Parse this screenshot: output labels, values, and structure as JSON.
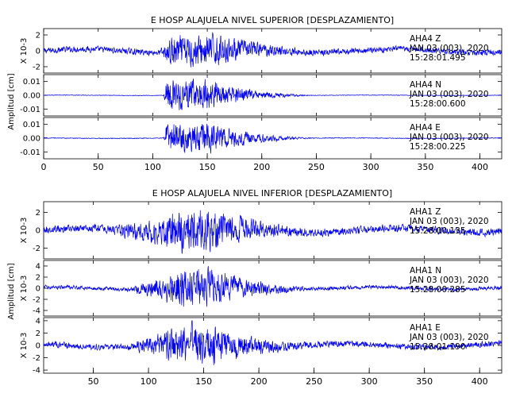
{
  "chart_data": [
    {
      "type": "line",
      "title": "E HOSP ALAJUELA NIVEL SUPERIOR [DESPLAZAMIENTO]",
      "ylabel": "Amplitud [cm]",
      "xlim": [
        0,
        420
      ],
      "x_ticks": [
        0,
        50,
        100,
        150,
        200,
        250,
        300,
        350,
        400
      ],
      "series_color": "#0000ee",
      "panels": [
        {
          "name": "AHA4 Z",
          "station": "AHA4",
          "component": "Z",
          "date": "JAN 03 (003), 2020",
          "time": "15:28:01.495",
          "scale_label": "X 10-3",
          "ylim": [
            -2.8,
            2.8
          ],
          "y_ticks": [
            -2,
            0,
            2
          ],
          "y_tick_labels": [
            "-2",
            "0",
            "2"
          ],
          "noise": 0.55,
          "peak": 2.6,
          "p_onset": 105,
          "s_peak": 140
        },
        {
          "name": "AHA4 N",
          "station": "AHA4",
          "component": "N",
          "date": "JAN 03 (003), 2020",
          "time": "15:28:00.600",
          "scale_label": "",
          "ylim": [
            -0.015,
            0.015
          ],
          "y_ticks": [
            -0.01,
            0,
            0.01
          ],
          "y_tick_labels": [
            "-0.01",
            "0.00",
            "0.01"
          ],
          "noise": 0.0003,
          "peak": 0.014,
          "p_onset": 110,
          "s_peak": 137
        },
        {
          "name": "AHA4 E",
          "station": "AHA4",
          "component": "E",
          "date": "JAN 03 (003), 2020",
          "time": "15:28:00.225",
          "scale_label": "",
          "ylim": [
            -0.015,
            0.015
          ],
          "y_ticks": [
            -0.01,
            0,
            0.01
          ],
          "y_tick_labels": [
            "-0.01",
            "0.00",
            "0.01"
          ],
          "noise": 0.0004,
          "peak": 0.014,
          "p_onset": 110,
          "s_peak": 137
        }
      ]
    },
    {
      "type": "line",
      "title": "E HOSP ALAJUELA NIVEL INFERIOR [DESPLAZAMIENTO]",
      "ylabel": "Amplitud [cm]",
      "xlim": [
        5,
        420
      ],
      "x_ticks": [
        50,
        100,
        150,
        200,
        250,
        300,
        350,
        400
      ],
      "series_color": "#0000ee",
      "panels": [
        {
          "name": "AHA1 Z",
          "station": "AHA1",
          "component": "Z",
          "date": "JAN 03 (003), 2020",
          "time": "15:28:00.135",
          "scale_label": "X 10-3",
          "ylim": [
            -3.2,
            3.2
          ],
          "y_ticks": [
            -2,
            0,
            2
          ],
          "y_tick_labels": [
            "-2",
            "0",
            "2"
          ],
          "noise": 0.6,
          "peak": 3.0,
          "p_onset": 60,
          "s_peak": 140
        },
        {
          "name": "AHA1 N",
          "station": "AHA1",
          "component": "N",
          "date": "JAN 03 (003), 2020",
          "time": "15:28:00.285",
          "scale_label": "X 10-3",
          "ylim": [
            -5,
            5
          ],
          "y_ticks": [
            -4,
            -2,
            0,
            2,
            4
          ],
          "y_tick_labels": [
            "-4",
            "-2",
            "0",
            "2",
            "4"
          ],
          "noise": 0.5,
          "peak": 4.5,
          "p_onset": 80,
          "s_peak": 140
        },
        {
          "name": "AHA1 E",
          "station": "AHA1",
          "component": "E",
          "date": "JAN 03 (003), 2020",
          "time": "15:28:01.190",
          "scale_label": "X 10-3",
          "ylim": [
            -4.5,
            4.5
          ],
          "y_ticks": [
            -4,
            -2,
            0,
            2,
            4
          ],
          "y_tick_labels": [
            "-4",
            "-2",
            "0",
            "2",
            "4"
          ],
          "noise": 0.7,
          "peak": 4.2,
          "p_onset": 80,
          "s_peak": 140
        }
      ]
    }
  ]
}
